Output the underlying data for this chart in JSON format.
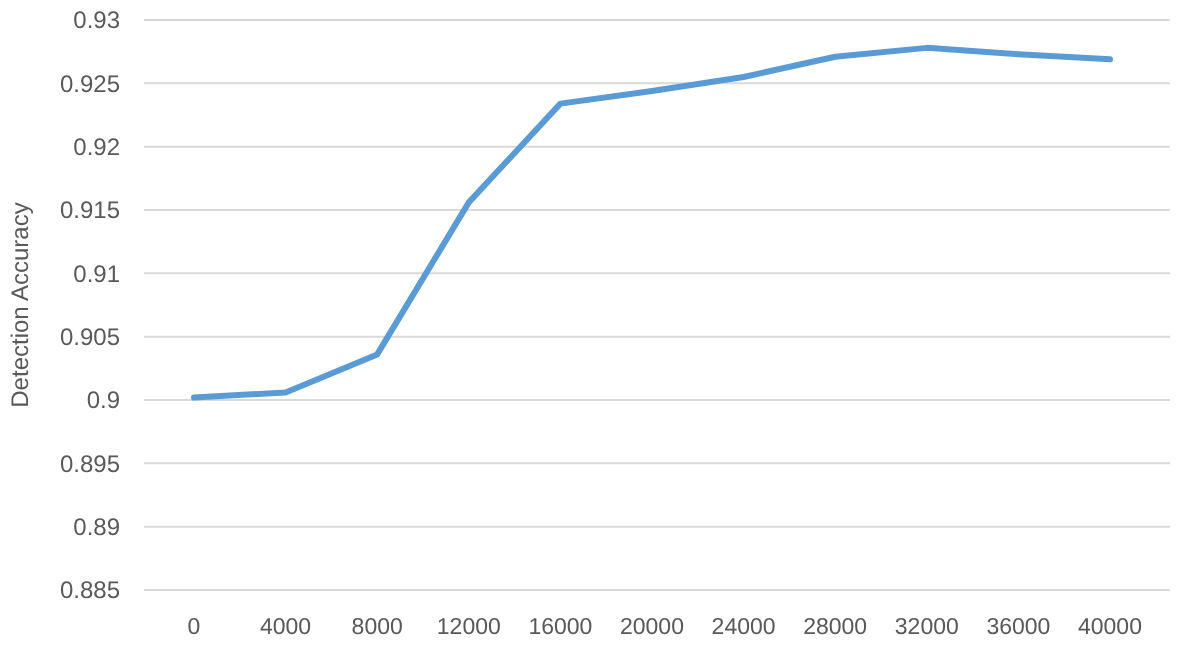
{
  "chart_data": {
    "type": "line",
    "ylabel": "Detection Accuracy",
    "categories": [
      "0",
      "4000",
      "8000",
      "12000",
      "16000",
      "20000",
      "24000",
      "28000",
      "32000",
      "36000",
      "40000"
    ],
    "series": [
      {
        "color": "#5b9bd5",
        "values": [
          0.9002,
          0.9006,
          0.9036,
          0.9156,
          0.9234,
          0.9244,
          0.9255,
          0.9271,
          0.9278,
          0.9273,
          0.9269
        ]
      }
    ],
    "ylim": [
      0.885,
      0.93
    ],
    "yticks": [
      0.885,
      0.89,
      0.895,
      0.9,
      0.905,
      0.91,
      0.915,
      0.92,
      0.925,
      0.93
    ],
    "grid": "y",
    "marker": "none",
    "line_style": "solid"
  }
}
